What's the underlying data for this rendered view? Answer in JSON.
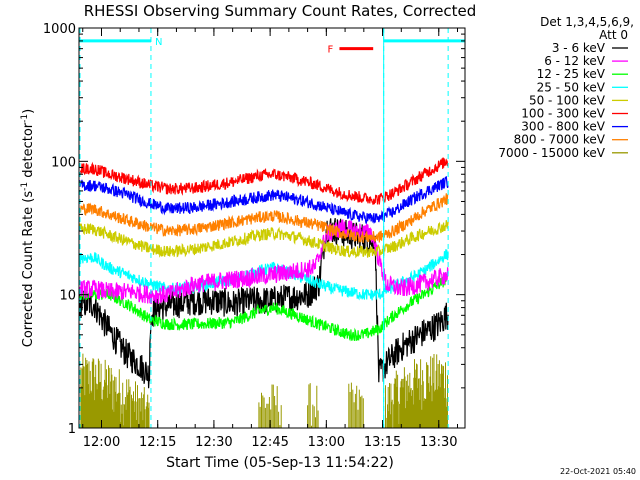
{
  "chart_data": {
    "type": "line",
    "title": "RHESSI Observing Summary Count Rates, Corrected",
    "xlabel": "Start Time (05-Sep-13 11:54:22)",
    "ylabel_main": "Corrected Count Rate (s",
    "ylabel_sup1": "-1",
    "ylabel_mid": " detector",
    "ylabel_sup2": "-1",
    "ylabel_end": ")",
    "y_scale": "log",
    "ylim": [
      1,
      1000
    ],
    "xlim_minutes": [
      -6,
      97
    ],
    "x_ticks": [
      {
        "m": 0,
        "label": "12:00"
      },
      {
        "m": 15,
        "label": "12:15"
      },
      {
        "m": 30,
        "label": "12:30"
      },
      {
        "m": 45,
        "label": "12:45"
      },
      {
        "m": 60,
        "label": "13:00"
      },
      {
        "m": 75,
        "label": "13:15"
      },
      {
        "m": 90,
        "label": "13:30"
      }
    ],
    "y_ticks": [
      {
        "v": 1,
        "label": "1"
      },
      {
        "v": 10,
        "label": "10"
      },
      {
        "v": 100,
        "label": "100"
      },
      {
        "v": 1000,
        "label": "1000"
      }
    ],
    "legend_header": [
      "Det 1,3,4,5,6,9,",
      "Att 0"
    ],
    "legend_position": "right",
    "series": [
      {
        "name": "3 - 6 keV",
        "color": "#000000",
        "x": [
          -2,
          1,
          4,
          7,
          10,
          12.8,
          13,
          15,
          20,
          25,
          30,
          35,
          40,
          45,
          50,
          55,
          58,
          60,
          63,
          66,
          70,
          73,
          74,
          76,
          78,
          80,
          85,
          90,
          92
        ],
        "y": [
          8.5,
          6,
          4.5,
          3.5,
          3.0,
          2.5,
          7,
          8,
          8.5,
          9,
          9,
          8.5,
          9,
          9,
          9.5,
          10,
          12,
          32,
          30,
          28,
          27,
          25,
          2.5,
          3,
          3.5,
          4,
          5,
          6,
          7
        ]
      },
      {
        "name": "6 - 12 keV",
        "color": "#ff00ff",
        "x": [
          -2,
          2,
          8,
          13,
          18,
          25,
          35,
          45,
          52,
          57,
          60,
          64,
          68,
          72,
          76,
          80,
          85,
          92
        ],
        "y": [
          11,
          10.5,
          10.5,
          10,
          10,
          12,
          13,
          14,
          15,
          16,
          28,
          32,
          30,
          29,
          12,
          11,
          12,
          14
        ]
      },
      {
        "name": "12 - 25 keV",
        "color": "#00ff00",
        "x": [
          -2,
          2,
          7,
          13,
          18,
          25,
          35,
          42,
          46,
          52,
          58,
          62,
          66,
          70,
          74,
          78,
          82,
          86,
          92
        ],
        "y": [
          10,
          10,
          8.5,
          6.5,
          6.0,
          6.0,
          6.2,
          7.5,
          8.0,
          7.0,
          6.0,
          5.5,
          5.0,
          5.0,
          5.5,
          7.0,
          8.5,
          10,
          13
        ]
      },
      {
        "name": "25 - 50 keV",
        "color": "#00ffff",
        "x": [
          -2,
          2,
          7,
          13,
          18,
          25,
          35,
          42,
          46,
          52,
          58,
          62,
          66,
          70,
          74,
          78,
          82,
          86,
          92
        ],
        "y": [
          19,
          16,
          14,
          12,
          11,
          11.5,
          13,
          15,
          16,
          14,
          12,
          11,
          10.5,
          10,
          10,
          11.5,
          13,
          15,
          20
        ]
      },
      {
        "name": "50 - 100 keV",
        "color": "#cccc00",
        "x": [
          -2,
          2,
          7,
          13,
          18,
          25,
          35,
          42,
          46,
          52,
          58,
          62,
          66,
          70,
          74,
          78,
          82,
          86,
          92
        ],
        "y": [
          31,
          28,
          25,
          22,
          21,
          22,
          25,
          28,
          29,
          27,
          24,
          22,
          21,
          21,
          21,
          23,
          26,
          29,
          33
        ]
      },
      {
        "name": "100 - 300 keV",
        "color": "#ff0000",
        "x": [
          -2,
          2,
          7,
          13,
          18,
          25,
          35,
          42,
          46,
          52,
          58,
          62,
          66,
          70,
          74,
          78,
          82,
          86,
          92
        ],
        "y": [
          88,
          80,
          74,
          66,
          62,
          63,
          70,
          78,
          80,
          74,
          66,
          60,
          56,
          53,
          52,
          58,
          68,
          80,
          100
        ]
      },
      {
        "name": "300 - 800 keV",
        "color": "#0000ff",
        "x": [
          -2,
          2,
          7,
          13,
          18,
          25,
          35,
          42,
          46,
          52,
          58,
          62,
          66,
          70,
          74,
          78,
          82,
          86,
          92
        ],
        "y": [
          66,
          62,
          56,
          48,
          44,
          45,
          50,
          54,
          56,
          52,
          47,
          43,
          40,
          38,
          37,
          42,
          50,
          58,
          70
        ]
      },
      {
        "name": "800 - 7000 keV",
        "color": "#ff8000",
        "x": [
          -2,
          2,
          7,
          13,
          18,
          25,
          35,
          42,
          46,
          52,
          58,
          62,
          66,
          70,
          74,
          78,
          82,
          86,
          92
        ],
        "y": [
          44,
          40,
          36,
          32,
          30,
          31,
          35,
          38,
          39,
          36,
          33,
          30,
          28,
          27,
          27,
          30,
          35,
          42,
          52
        ]
      },
      {
        "name": "7000 - 15000 keV",
        "color": "#999900",
        "x": [
          -2,
          2,
          7,
          10,
          13,
          14,
          70,
          74,
          78,
          82,
          86,
          92
        ],
        "y": [
          2.5,
          2.2,
          1.8,
          1.5,
          1.3,
          1,
          1,
          1.3,
          1.8,
          2.2,
          2.5,
          2.5
        ]
      }
    ],
    "annotations": {
      "night_markers_minutes": [
        13.2,
        75.3
      ],
      "night_marker_label": "N",
      "night_bar_segments": [
        [
          -6,
          13.2
        ],
        [
          75.3,
          97
        ]
      ],
      "saa_markers_minutes": [
        -6,
        92.5
      ],
      "flare_label": "F",
      "flare_bar_minutes": [
        63.5,
        72.5
      ],
      "flare_bar_level": 700,
      "night_bar_level": 800
    },
    "footer_stamp": "22-Oct-2021 05:40"
  },
  "palette": {
    "night": "#00ffff",
    "flare": "#ff0000",
    "background": "#ffffff"
  }
}
